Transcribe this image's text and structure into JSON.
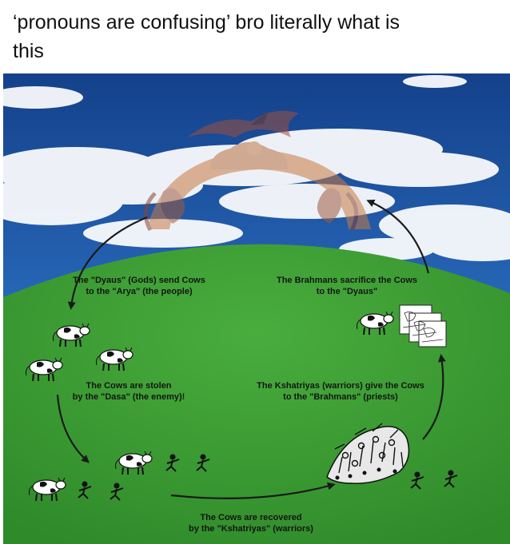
{
  "post": {
    "caption_line1": "‘pronouns are confusing’ bro literally what is",
    "caption_line2": "this"
  },
  "diagram": {
    "steps": [
      {
        "line1": "The \"Dyaus\" (Gods) send Cows",
        "line2": "to the \"Arya\" (the people)"
      },
      {
        "line1": "The Cows are stolen",
        "line2": "by the \"Dasa\" (the enemy)!"
      },
      {
        "line1": "The Cows are recovered",
        "line2": "by the \"Kshatriyas\" (warriors)"
      },
      {
        "line1": "The Kshatriyas (warriors) give the Cows",
        "line2": "to the \"Brahmans\" (priests)"
      },
      {
        "line1": "The Brahmans sacrifice the Cows",
        "line2": "to the \"Dyaus\""
      }
    ]
  },
  "colors": {
    "sky": "#2c6fc2",
    "grass": "#3c9a34",
    "arrow": "#1a1a1a"
  },
  "icons": [
    "dragon-deity-icon",
    "cow-icon",
    "raider-icon",
    "warrior-army-icon",
    "priest-drawing-icon"
  ]
}
